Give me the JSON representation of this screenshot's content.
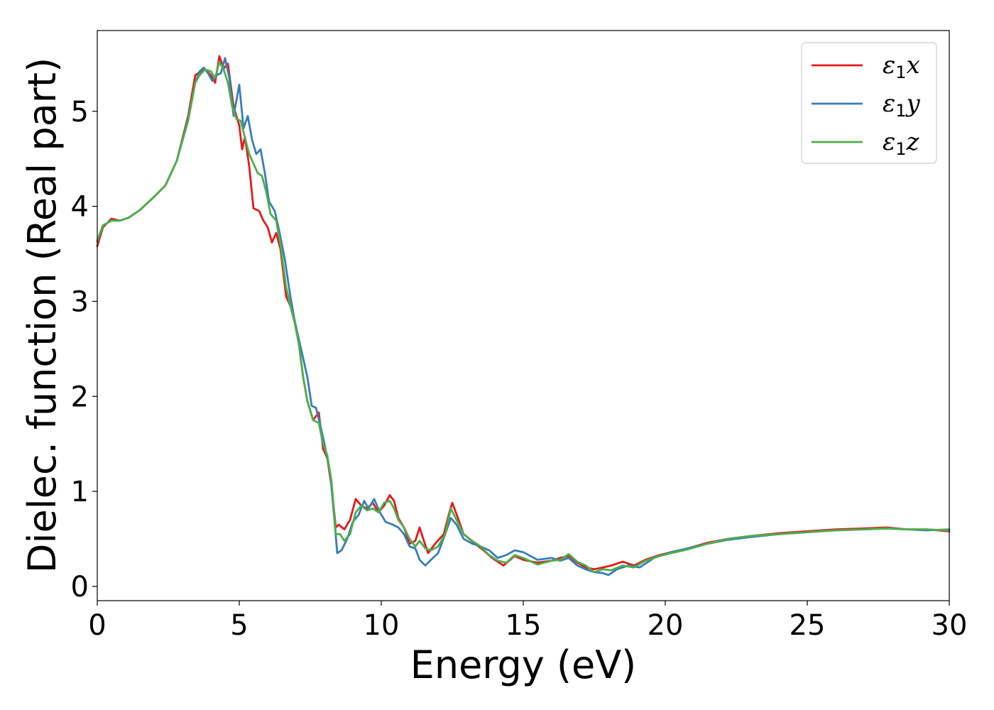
{
  "chart_data": {
    "type": "line",
    "title": "",
    "xlabel": "Energy (eV)",
    "ylabel": "Dielec. function (Real part)",
    "xlim": [
      0,
      30
    ],
    "ylim": [
      -0.15,
      5.85
    ],
    "xticks": [
      0,
      5,
      10,
      15,
      20,
      25,
      30
    ],
    "xtick_labels": [
      "0",
      "5",
      "10",
      "15",
      "20",
      "25",
      "30"
    ],
    "yticks": [
      0,
      1,
      2,
      3,
      4,
      5
    ],
    "ytick_labels": [
      "0",
      "1",
      "2",
      "3",
      "4",
      "5"
    ],
    "grid": false,
    "legend_position": "top-right",
    "series": [
      {
        "name": "ε1x",
        "symbol": "ε",
        "subscript": "1",
        "suffix": "x",
        "color": "#e41a1c",
        "points": [
          [
            0.0,
            3.58
          ],
          [
            0.2,
            3.78
          ],
          [
            0.5,
            3.87
          ],
          [
            0.8,
            3.85
          ],
          [
            1.1,
            3.88
          ],
          [
            1.5,
            3.96
          ],
          [
            2.0,
            4.1
          ],
          [
            2.4,
            4.22
          ],
          [
            2.8,
            4.48
          ],
          [
            3.2,
            4.95
          ],
          [
            3.45,
            5.38
          ],
          [
            3.6,
            5.41
          ],
          [
            3.8,
            5.44
          ],
          [
            4.0,
            5.38
          ],
          [
            4.15,
            5.3
          ],
          [
            4.3,
            5.58
          ],
          [
            4.45,
            5.45
          ],
          [
            4.6,
            5.5
          ],
          [
            4.8,
            5.05
          ],
          [
            5.0,
            4.85
          ],
          [
            5.1,
            4.6
          ],
          [
            5.2,
            4.73
          ],
          [
            5.35,
            4.42
          ],
          [
            5.5,
            3.98
          ],
          [
            5.7,
            3.95
          ],
          [
            5.85,
            3.85
          ],
          [
            6.0,
            3.78
          ],
          [
            6.15,
            3.62
          ],
          [
            6.3,
            3.72
          ],
          [
            6.45,
            3.55
          ],
          [
            6.65,
            3.05
          ],
          [
            6.8,
            2.95
          ],
          [
            6.95,
            2.78
          ],
          [
            7.1,
            2.55
          ],
          [
            7.25,
            2.2
          ],
          [
            7.4,
            1.95
          ],
          [
            7.6,
            1.75
          ],
          [
            7.8,
            1.83
          ],
          [
            7.95,
            1.45
          ],
          [
            8.1,
            1.35
          ],
          [
            8.25,
            1.05
          ],
          [
            8.4,
            0.62
          ],
          [
            8.5,
            0.65
          ],
          [
            8.7,
            0.6
          ],
          [
            8.9,
            0.7
          ],
          [
            9.1,
            0.92
          ],
          [
            9.3,
            0.85
          ],
          [
            9.5,
            0.82
          ],
          [
            9.7,
            0.88
          ],
          [
            9.9,
            0.78
          ],
          [
            10.1,
            0.85
          ],
          [
            10.3,
            0.96
          ],
          [
            10.45,
            0.9
          ],
          [
            10.6,
            0.72
          ],
          [
            10.8,
            0.62
          ],
          [
            11.0,
            0.45
          ],
          [
            11.2,
            0.48
          ],
          [
            11.35,
            0.62
          ],
          [
            11.5,
            0.48
          ],
          [
            11.65,
            0.35
          ],
          [
            11.9,
            0.45
          ],
          [
            12.2,
            0.55
          ],
          [
            12.4,
            0.78
          ],
          [
            12.5,
            0.88
          ],
          [
            12.7,
            0.72
          ],
          [
            12.9,
            0.55
          ],
          [
            13.3,
            0.45
          ],
          [
            13.6,
            0.38
          ],
          [
            13.9,
            0.3
          ],
          [
            14.3,
            0.22
          ],
          [
            14.7,
            0.32
          ],
          [
            15.0,
            0.28
          ],
          [
            15.5,
            0.25
          ],
          [
            16.0,
            0.27
          ],
          [
            16.3,
            0.3
          ],
          [
            16.6,
            0.32
          ],
          [
            16.9,
            0.25
          ],
          [
            17.2,
            0.2
          ],
          [
            17.5,
            0.18
          ],
          [
            17.8,
            0.2
          ],
          [
            18.1,
            0.22
          ],
          [
            18.5,
            0.26
          ],
          [
            18.9,
            0.22
          ],
          [
            19.3,
            0.28
          ],
          [
            19.8,
            0.33
          ],
          [
            20.2,
            0.36
          ],
          [
            20.8,
            0.4
          ],
          [
            21.5,
            0.46
          ],
          [
            22.2,
            0.5
          ],
          [
            23.0,
            0.53
          ],
          [
            24.0,
            0.56
          ],
          [
            25.0,
            0.58
          ],
          [
            26.0,
            0.6
          ],
          [
            27.0,
            0.61
          ],
          [
            27.8,
            0.62
          ],
          [
            28.5,
            0.6
          ],
          [
            29.2,
            0.6
          ],
          [
            30.0,
            0.58
          ]
        ]
      },
      {
        "name": "ε1y",
        "symbol": "ε",
        "subscript": "1",
        "suffix": "y",
        "color": "#377eb8",
        "points": [
          [
            0.0,
            3.63
          ],
          [
            0.2,
            3.8
          ],
          [
            0.5,
            3.85
          ],
          [
            0.8,
            3.85
          ],
          [
            1.1,
            3.88
          ],
          [
            1.5,
            3.96
          ],
          [
            2.0,
            4.1
          ],
          [
            2.4,
            4.22
          ],
          [
            2.8,
            4.48
          ],
          [
            3.2,
            4.92
          ],
          [
            3.45,
            5.3
          ],
          [
            3.6,
            5.42
          ],
          [
            3.75,
            5.46
          ],
          [
            3.9,
            5.4
          ],
          [
            4.05,
            5.32
          ],
          [
            4.2,
            5.38
          ],
          [
            4.35,
            5.4
          ],
          [
            4.5,
            5.56
          ],
          [
            4.65,
            5.35
          ],
          [
            4.8,
            4.95
          ],
          [
            5.0,
            5.28
          ],
          [
            5.15,
            4.82
          ],
          [
            5.3,
            4.95
          ],
          [
            5.45,
            4.7
          ],
          [
            5.6,
            4.55
          ],
          [
            5.75,
            4.6
          ],
          [
            5.9,
            4.35
          ],
          [
            6.05,
            4.05
          ],
          [
            6.25,
            3.95
          ],
          [
            6.4,
            3.75
          ],
          [
            6.6,
            3.45
          ],
          [
            6.8,
            3.05
          ],
          [
            6.95,
            2.8
          ],
          [
            7.1,
            2.6
          ],
          [
            7.25,
            2.4
          ],
          [
            7.4,
            2.2
          ],
          [
            7.55,
            1.9
          ],
          [
            7.7,
            1.88
          ],
          [
            7.85,
            1.7
          ],
          [
            8.0,
            1.5
          ],
          [
            8.2,
            1.2
          ],
          [
            8.35,
            0.7
          ],
          [
            8.45,
            0.35
          ],
          [
            8.6,
            0.38
          ],
          [
            8.8,
            0.5
          ],
          [
            9.0,
            0.68
          ],
          [
            9.2,
            0.75
          ],
          [
            9.4,
            0.9
          ],
          [
            9.55,
            0.82
          ],
          [
            9.75,
            0.92
          ],
          [
            9.95,
            0.78
          ],
          [
            10.15,
            0.68
          ],
          [
            10.4,
            0.65
          ],
          [
            10.6,
            0.62
          ],
          [
            10.8,
            0.55
          ],
          [
            11.0,
            0.42
          ],
          [
            11.2,
            0.4
          ],
          [
            11.35,
            0.28
          ],
          [
            11.55,
            0.22
          ],
          [
            11.75,
            0.28
          ],
          [
            12.0,
            0.35
          ],
          [
            12.25,
            0.55
          ],
          [
            12.45,
            0.72
          ],
          [
            12.65,
            0.65
          ],
          [
            12.9,
            0.5
          ],
          [
            13.2,
            0.45
          ],
          [
            13.5,
            0.42
          ],
          [
            13.8,
            0.38
          ],
          [
            14.1,
            0.3
          ],
          [
            14.4,
            0.33
          ],
          [
            14.7,
            0.38
          ],
          [
            15.0,
            0.36
          ],
          [
            15.5,
            0.28
          ],
          [
            16.0,
            0.3
          ],
          [
            16.3,
            0.27
          ],
          [
            16.6,
            0.3
          ],
          [
            16.9,
            0.22
          ],
          [
            17.2,
            0.18
          ],
          [
            17.5,
            0.15
          ],
          [
            17.8,
            0.14
          ],
          [
            18.0,
            0.12
          ],
          [
            18.3,
            0.18
          ],
          [
            18.7,
            0.22
          ],
          [
            19.1,
            0.2
          ],
          [
            19.6,
            0.3
          ],
          [
            20.2,
            0.36
          ],
          [
            20.8,
            0.4
          ],
          [
            21.5,
            0.45
          ],
          [
            22.2,
            0.49
          ],
          [
            23.0,
            0.52
          ],
          [
            24.0,
            0.55
          ],
          [
            25.0,
            0.57
          ],
          [
            26.0,
            0.59
          ],
          [
            27.0,
            0.6
          ],
          [
            27.8,
            0.61
          ],
          [
            28.5,
            0.6
          ],
          [
            29.2,
            0.59
          ],
          [
            30.0,
            0.6
          ]
        ]
      },
      {
        "name": "ε1z",
        "symbol": "ε",
        "subscript": "1",
        "suffix": "z",
        "color": "#4daf4a",
        "points": [
          [
            0.0,
            3.64
          ],
          [
            0.2,
            3.8
          ],
          [
            0.5,
            3.85
          ],
          [
            0.8,
            3.85
          ],
          [
            1.1,
            3.88
          ],
          [
            1.5,
            3.96
          ],
          [
            2.0,
            4.1
          ],
          [
            2.4,
            4.22
          ],
          [
            2.8,
            4.48
          ],
          [
            3.2,
            4.9
          ],
          [
            3.45,
            5.3
          ],
          [
            3.6,
            5.38
          ],
          [
            3.8,
            5.44
          ],
          [
            4.0,
            5.42
          ],
          [
            4.15,
            5.35
          ],
          [
            4.3,
            5.52
          ],
          [
            4.45,
            5.44
          ],
          [
            4.6,
            5.3
          ],
          [
            4.75,
            5.05
          ],
          [
            4.9,
            4.92
          ],
          [
            5.05,
            4.9
          ],
          [
            5.2,
            4.72
          ],
          [
            5.35,
            4.55
          ],
          [
            5.5,
            4.45
          ],
          [
            5.65,
            4.35
          ],
          [
            5.8,
            4.32
          ],
          [
            5.95,
            4.15
          ],
          [
            6.1,
            3.92
          ],
          [
            6.3,
            3.85
          ],
          [
            6.45,
            3.6
          ],
          [
            6.65,
            3.15
          ],
          [
            6.8,
            2.95
          ],
          [
            6.95,
            2.78
          ],
          [
            7.1,
            2.55
          ],
          [
            7.25,
            2.2
          ],
          [
            7.4,
            1.95
          ],
          [
            7.6,
            1.75
          ],
          [
            7.8,
            1.72
          ],
          [
            7.95,
            1.5
          ],
          [
            8.1,
            1.38
          ],
          [
            8.25,
            1.1
          ],
          [
            8.4,
            0.55
          ],
          [
            8.55,
            0.55
          ],
          [
            8.7,
            0.48
          ],
          [
            8.9,
            0.55
          ],
          [
            9.1,
            0.78
          ],
          [
            9.3,
            0.85
          ],
          [
            9.5,
            0.8
          ],
          [
            9.7,
            0.82
          ],
          [
            9.9,
            0.78
          ],
          [
            10.1,
            0.88
          ],
          [
            10.3,
            0.9
          ],
          [
            10.45,
            0.82
          ],
          [
            10.6,
            0.7
          ],
          [
            10.8,
            0.62
          ],
          [
            11.0,
            0.5
          ],
          [
            11.2,
            0.42
          ],
          [
            11.35,
            0.48
          ],
          [
            11.55,
            0.4
          ],
          [
            11.75,
            0.38
          ],
          [
            12.0,
            0.42
          ],
          [
            12.25,
            0.55
          ],
          [
            12.45,
            0.82
          ],
          [
            12.65,
            0.7
          ],
          [
            12.9,
            0.55
          ],
          [
            13.2,
            0.48
          ],
          [
            13.5,
            0.42
          ],
          [
            13.8,
            0.33
          ],
          [
            14.1,
            0.27
          ],
          [
            14.4,
            0.25
          ],
          [
            14.7,
            0.33
          ],
          [
            15.0,
            0.3
          ],
          [
            15.5,
            0.23
          ],
          [
            16.0,
            0.27
          ],
          [
            16.3,
            0.28
          ],
          [
            16.6,
            0.34
          ],
          [
            16.9,
            0.26
          ],
          [
            17.2,
            0.22
          ],
          [
            17.5,
            0.15
          ],
          [
            17.8,
            0.18
          ],
          [
            18.1,
            0.17
          ],
          [
            18.5,
            0.22
          ],
          [
            18.9,
            0.2
          ],
          [
            19.3,
            0.27
          ],
          [
            19.8,
            0.32
          ],
          [
            20.2,
            0.35
          ],
          [
            20.8,
            0.39
          ],
          [
            21.5,
            0.45
          ],
          [
            22.2,
            0.5
          ],
          [
            23.0,
            0.53
          ],
          [
            24.0,
            0.55
          ],
          [
            25.0,
            0.57
          ],
          [
            26.0,
            0.59
          ],
          [
            27.0,
            0.6
          ],
          [
            27.8,
            0.61
          ],
          [
            28.5,
            0.6
          ],
          [
            29.2,
            0.6
          ],
          [
            30.0,
            0.59
          ]
        ]
      }
    ]
  }
}
